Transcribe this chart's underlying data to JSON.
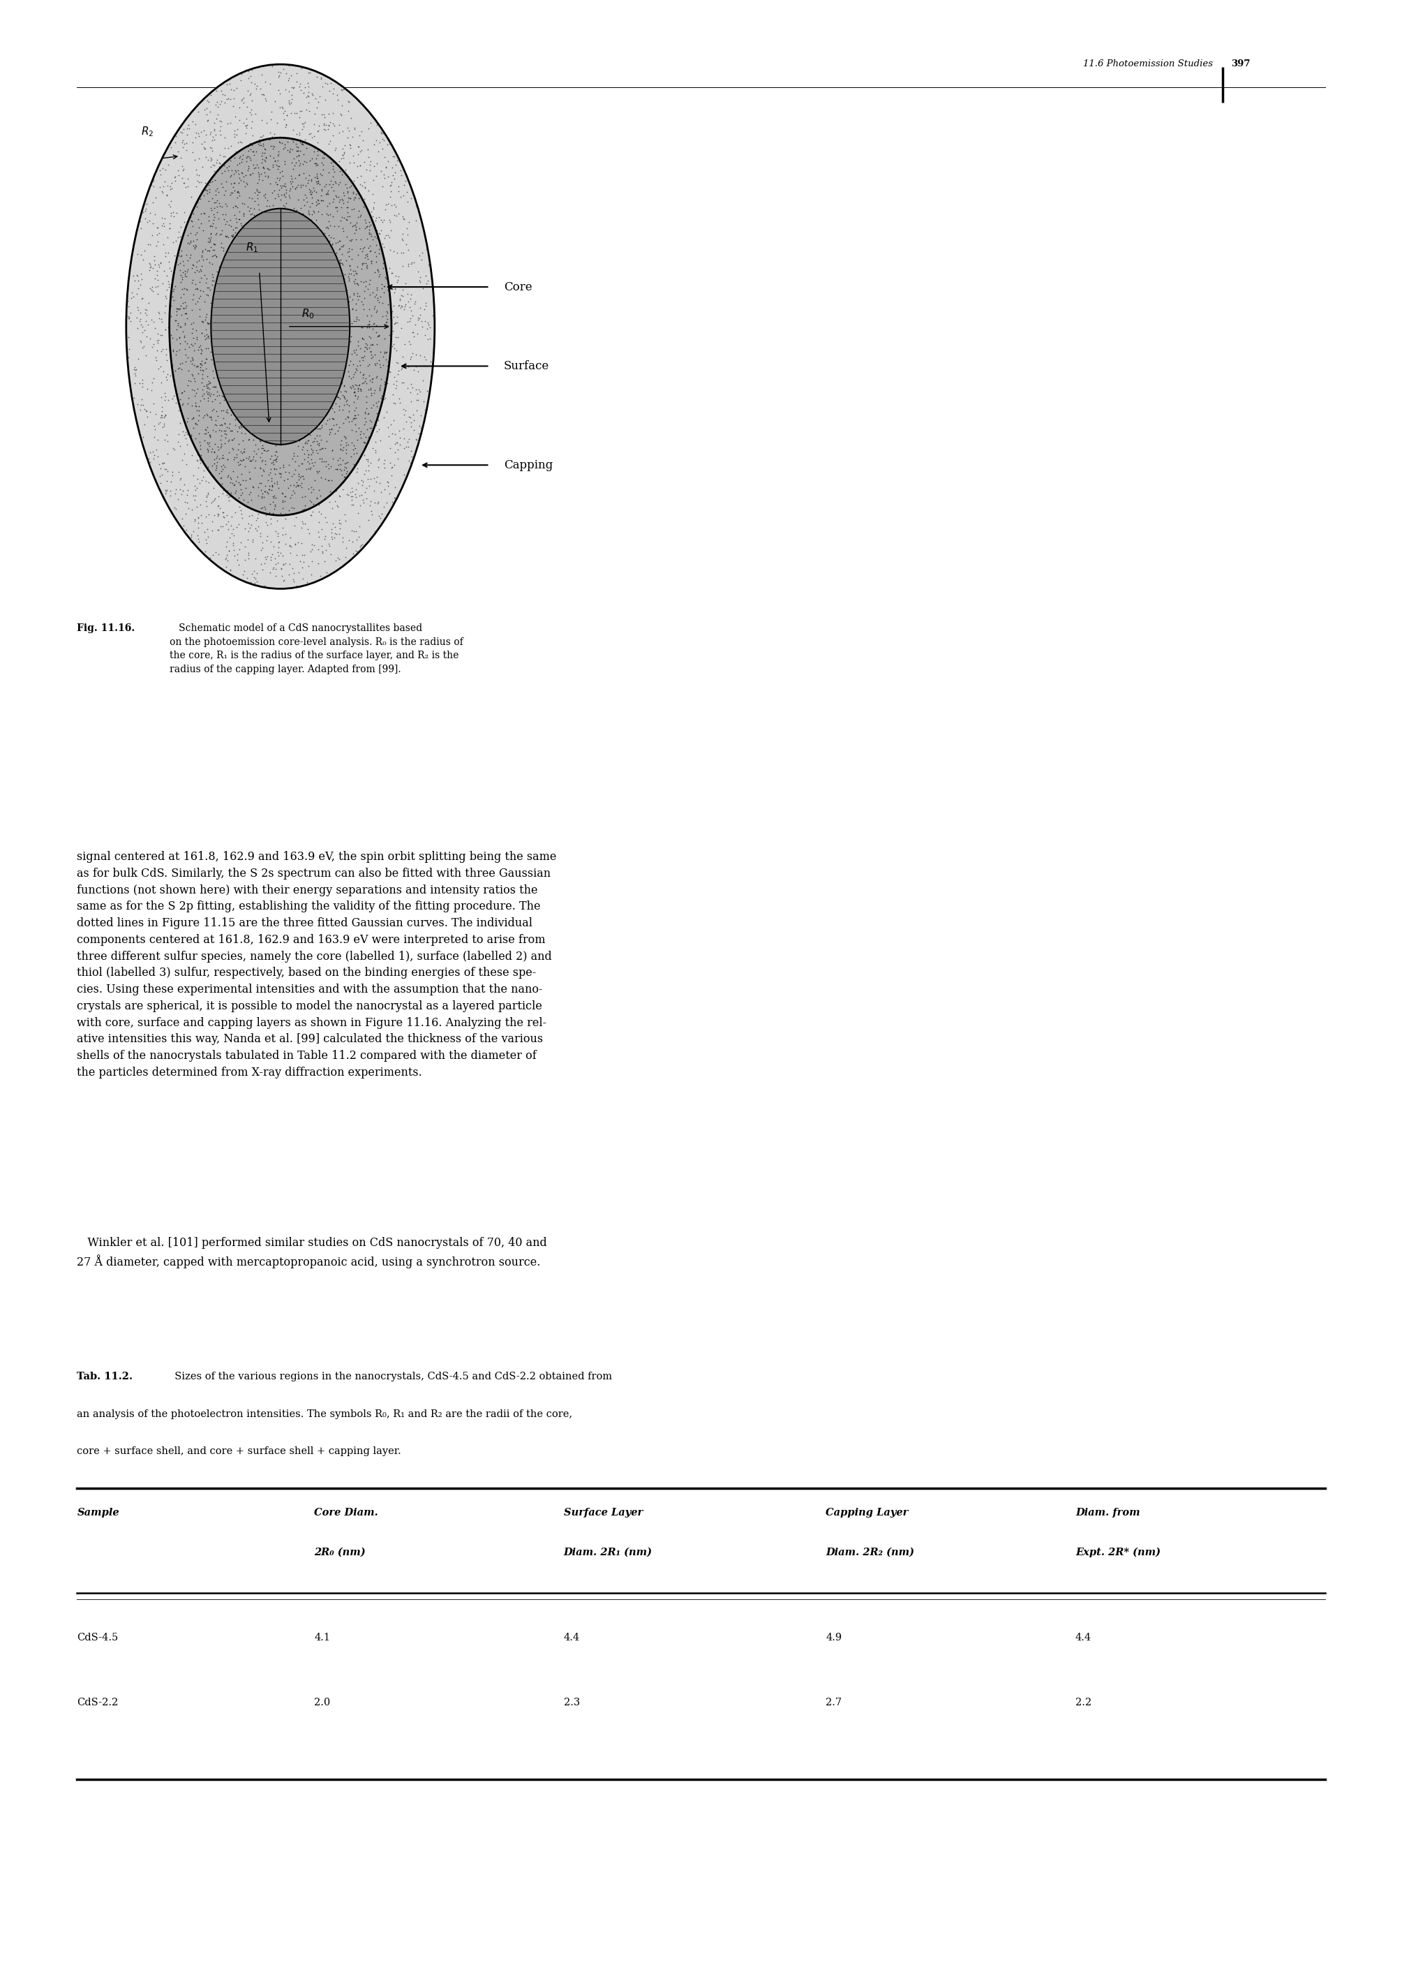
{
  "page_width": 20.09,
  "page_height": 28.35,
  "bg_color": "#ffffff",
  "header_text": "11.6 Photoemission Studies",
  "header_page": "397",
  "fig_caption_bold": "Fig. 11.16.",
  "fig_caption_rest": "   Schematic model of a CdS nanocrystallites based\non the photoemission core-level analysis. R₀ is the radius of\nthe core, R₁ is the radius of the surface layer, and R₂ is the\nradius of the capping layer. Adapted from [99].",
  "body_text_1": "signal centered at 161.8, 162.9 and 163.9 eV, the spin orbit splitting being the same\nas for bulk CdS. Similarly, the S 2s spectrum can also be fitted with three Gaussian\nfunctions (not shown here) with their energy separations and intensity ratios the\nsame as for the S 2p fitting, establishing the validity of the fitting procedure. The\ndotted lines in Figure 11.15 are the three fitted Gaussian curves. The individual\ncomponents centered at 161.8, 162.9 and 163.9 eV were interpreted to arise from\nthree different sulfur species, namely the core (labelled 1), surface (labelled 2) and\nthiol (labelled 3) sulfur, respectively, based on the binding energies of these spe-\ncies. Using these experimental intensities and with the assumption that the nano-\ncrystals are spherical, it is possible to model the nanocrystal as a layered particle\nwith core, surface and capping layers as shown in Figure 11.16. Analyzing the rel-\native intensities this way, Nanda et al. [99] calculated the thickness of the various\nshells of the nanocrystals tabulated in Table 11.2 compared with the diameter of\nthe particles determined from X-ray diffraction experiments.",
  "body_text_2": "   Winkler et al. [101] performed similar studies on CdS nanocrystals of 70, 40 and\n27 Å diameter, capped with mercaptopropanoic acid, using a synchrotron source.",
  "tab_label": "Tab. 11.2.",
  "tab_caption_after": "  Sizes of the various regions in the nanocrystals, CdS-4.5 and CdS-2.2 obtained from\nan analysis of the photoelectron intensities. The symbols R₀, R₁ and R₂ are the radii of the core,\ncore + surface shell, and core + surface shell + capping layer.",
  "col_headers": [
    "Sample",
    "Core Diam.\n2R₀ (nm)",
    "Surface Layer\nDiam. 2R₁ (nm)",
    "Capping Layer\nDiam. 2R₂ (nm)",
    "Diam. from\nExpt. 2R* (nm)"
  ],
  "rows": [
    [
      "CdS-4.5",
      "4.1",
      "4.4",
      "4.9",
      "4.4"
    ],
    [
      "CdS-2.2",
      "2.0",
      "2.3",
      "2.7",
      "2.2"
    ]
  ],
  "body_font_size": 11.5,
  "caption_font_size": 10,
  "table_font_size": 11
}
